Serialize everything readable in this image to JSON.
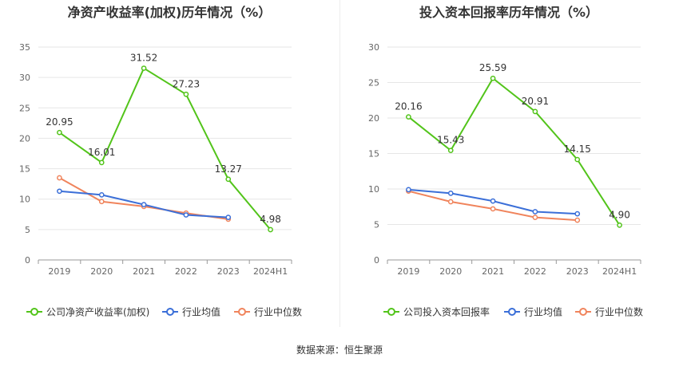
{
  "chart_data": [
    {
      "type": "line",
      "title": "净资产收益率(加权)历年情况（%）",
      "categories": [
        "2019",
        "2020",
        "2021",
        "2022",
        "2023",
        "2024H1"
      ],
      "ylim": [
        0,
        35
      ],
      "yticks": [
        0,
        5,
        10,
        15,
        20,
        25,
        30,
        35
      ],
      "grid": true,
      "legend_position": "bottom",
      "series": [
        {
          "name": "公司净资产收益率(加权)",
          "color": "#52c41a",
          "values": [
            20.95,
            16.01,
            31.52,
            27.23,
            13.27,
            4.98
          ],
          "labels": [
            "20.95",
            "16.01",
            "31.52",
            "27.23",
            "13.27",
            "4.98"
          ]
        },
        {
          "name": "行业均值",
          "color": "#3b6fd8",
          "values": [
            11.3,
            10.7,
            9.1,
            7.4,
            7.0,
            null
          ]
        },
        {
          "name": "行业中位数",
          "color": "#f0845c",
          "values": [
            13.5,
            9.6,
            8.8,
            7.7,
            6.7,
            null
          ]
        }
      ]
    },
    {
      "type": "line",
      "title": "投入资本回报率历年情况（%）",
      "categories": [
        "2019",
        "2020",
        "2021",
        "2022",
        "2023",
        "2024H1"
      ],
      "ylim": [
        0,
        30
      ],
      "yticks": [
        0,
        5,
        10,
        15,
        20,
        25,
        30
      ],
      "grid": true,
      "legend_position": "bottom",
      "series": [
        {
          "name": "公司投入资本回报率",
          "color": "#52c41a",
          "values": [
            20.16,
            15.43,
            25.59,
            20.91,
            14.15,
            4.9
          ],
          "labels": [
            "20.16",
            "15.43",
            "25.59",
            "20.91",
            "14.15",
            "4.90"
          ]
        },
        {
          "name": "行业均值",
          "color": "#3b6fd8",
          "values": [
            9.9,
            9.4,
            8.3,
            6.8,
            6.5,
            null
          ]
        },
        {
          "name": "行业中位数",
          "color": "#f0845c",
          "values": [
            9.7,
            8.2,
            7.2,
            6.0,
            5.6,
            null
          ]
        }
      ]
    }
  ],
  "source_text": "数据来源：恒生聚源"
}
